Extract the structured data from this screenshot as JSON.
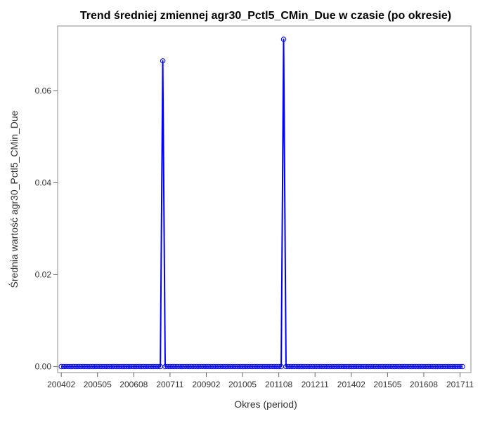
{
  "chart_data": {
    "type": "line",
    "title": "Trend średniej zmiennej agr30_Pctl5_CMin_Due w czasie (po okresie)",
    "xlabel": "Okres (period)",
    "ylabel": "Średnia wartość agr30_Pctl5_CMin_Due",
    "x_tick_labels": [
      "200402",
      "200505",
      "200608",
      "200711",
      "200902",
      "201005",
      "201108",
      "201211",
      "201402",
      "201505",
      "201608",
      "201711"
    ],
    "y_tick_labels": [
      "0.00",
      "0.02",
      "0.04",
      "0.06"
    ],
    "y_ticks": [
      0,
      0.02,
      0.04,
      0.06
    ],
    "ylim": [
      -0.0013,
      0.0741
    ],
    "x_start": "200402",
    "x_end": "201712",
    "x_domain_months": [
      -1.5,
      169.5
    ],
    "grid": false,
    "legend": "none",
    "marker": "circle-open",
    "line_color": "#0000ff",
    "series": [
      {
        "points": [
          {
            "x": "200708",
            "y": 0.0665
          },
          {
            "x": "201110",
            "y": 0.0712
          }
        ],
        "default_y": 0
      }
    ]
  }
}
